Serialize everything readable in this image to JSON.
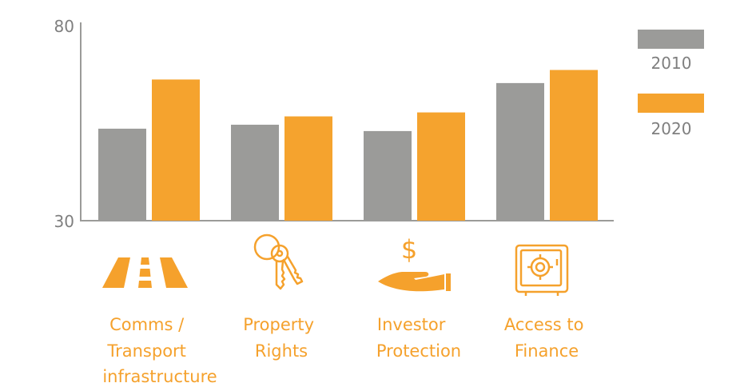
{
  "colors": {
    "series_2010": "#9b9b99",
    "series_2020": "#f5a32e",
    "axis": "#9b9b99",
    "category_label": "#f5a12c",
    "tick_label": "#7f7f7f"
  },
  "chart_data": {
    "type": "bar",
    "categories": [
      "Comms / Transport infrastructure",
      "Property Rights",
      "Investor Protection",
      "Access to Finance"
    ],
    "category_label_lines": [
      [
        "Comms /",
        "Transport",
        "infrastructure"
      ],
      [
        "Property",
        "Rights"
      ],
      [
        "Investor",
        "Protection"
      ],
      [
        "Access to",
        "Finance"
      ]
    ],
    "category_icons": [
      "road-icon",
      "keys-icon",
      "hand-dollar-icon",
      "safe-icon"
    ],
    "series": [
      {
        "name": "2010",
        "values": [
          53.2,
          54.2,
          52.6,
          64.7
        ]
      },
      {
        "name": "2020",
        "values": [
          65.6,
          56.3,
          57.3,
          68.0
        ]
      }
    ],
    "ylim": [
      30,
      80
    ],
    "yticks": [
      "80",
      "30"
    ],
    "grid": false,
    "legend_position": "right"
  }
}
